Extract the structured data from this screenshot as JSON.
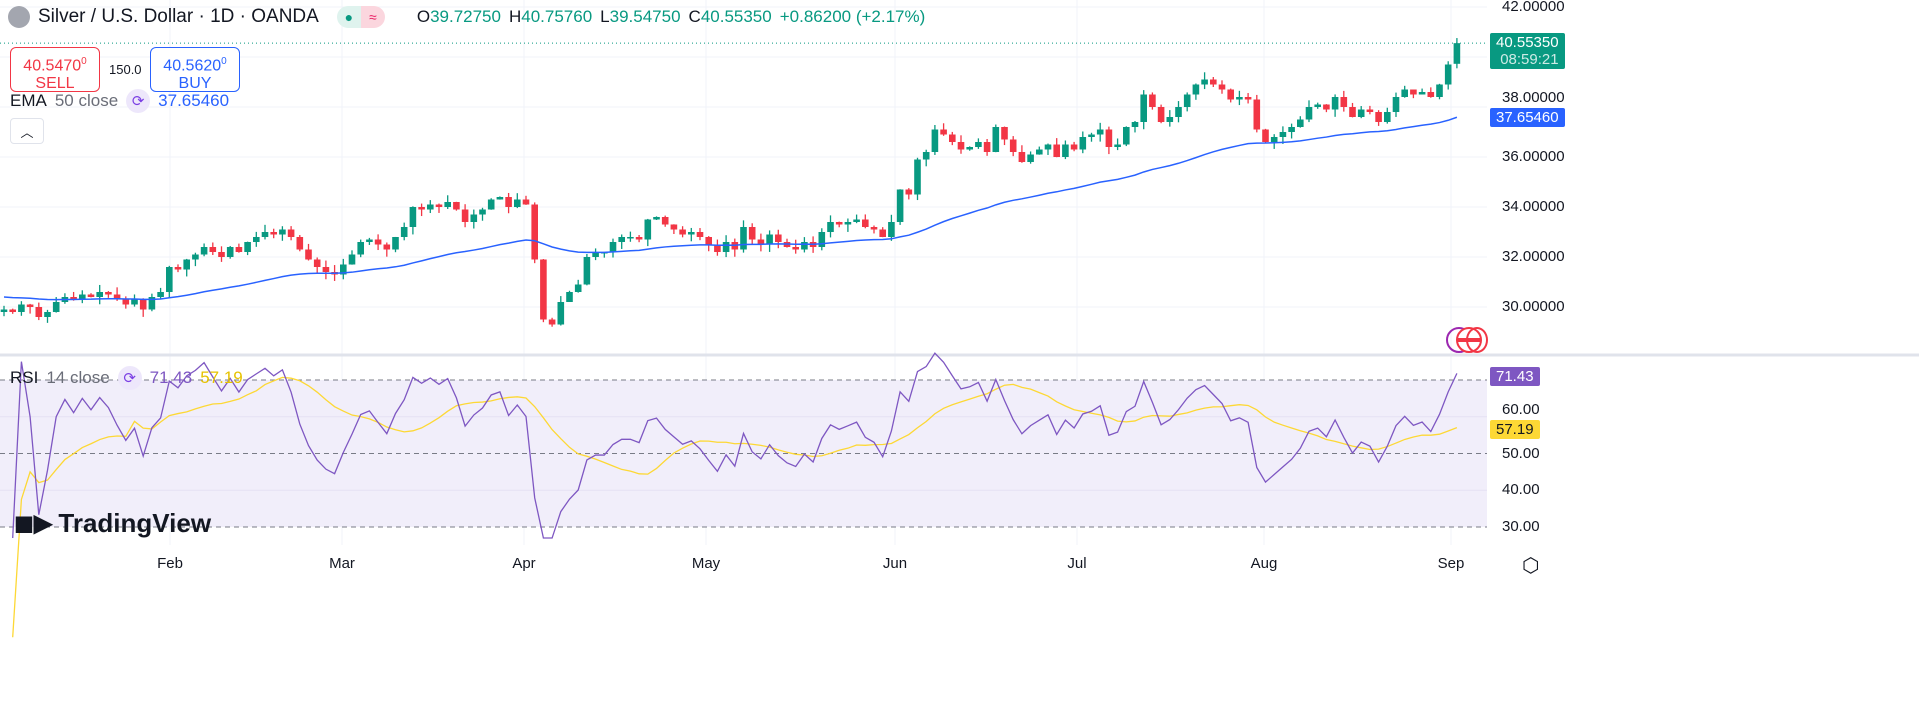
{
  "header": {
    "symbol": "Silver / U.S. Dollar · 1D · OANDA",
    "market_status_icon": "green-dot",
    "session_icon": "approx-wave",
    "ohlc": [
      {
        "k": "O",
        "v": "39.72750"
      },
      {
        "k": "H",
        "v": "40.75760"
      },
      {
        "k": "L",
        "v": "39.54750"
      },
      {
        "k": "C",
        "v": "40.55350"
      }
    ],
    "change": "+0.86200 (+2.17%)"
  },
  "trade": {
    "sell_price": "40.5470",
    "sell_sup": "0",
    "sell_label": "SELL",
    "spread": "150.0",
    "buy_price": "40.5620",
    "buy_sup": "0",
    "buy_label": "BUY"
  },
  "ema": {
    "name": "EMA",
    "params": "50 close",
    "value": "37.65460",
    "color": "#2962ff"
  },
  "rsi": {
    "name": "RSI",
    "params": "14 close",
    "value": "71.43",
    "ma_value": "57.19",
    "color": "#7e57c2",
    "ma_color": "#fdd835",
    "levels": [
      70,
      50,
      30
    ]
  },
  "price_axis": [
    "42.00000",
    "38.00000",
    "36.00000",
    "34.00000",
    "32.00000",
    "30.00000"
  ],
  "rsi_axis": [
    "60.00",
    "50.00",
    "40.00",
    "30.00"
  ],
  "last_price": {
    "value": "40.55350",
    "countdown": "08:59:21"
  },
  "time_axis": [
    "Feb",
    "Mar",
    "Apr",
    "May",
    "Jun",
    "Jul",
    "Aug",
    "Sep"
  ],
  "brand": "TradingView",
  "colors": {
    "up": "#089981",
    "down": "#f23645"
  },
  "chart_data": {
    "type": "candlestick",
    "price_range": [
      28,
      42
    ],
    "rsi_range": [
      25,
      80
    ],
    "last_candle": {
      "o": 39.7275,
      "h": 40.7576,
      "l": 39.5475,
      "c": 40.5535
    },
    "closes": [
      29.9,
      29.8,
      30.1,
      30.0,
      29.6,
      29.8,
      30.2,
      30.4,
      30.3,
      30.5,
      30.4,
      30.6,
      30.5,
      30.3,
      30.1,
      30.3,
      29.9,
      30.4,
      30.6,
      31.6,
      31.5,
      31.9,
      32.1,
      32.4,
      32.2,
      32.0,
      32.4,
      32.2,
      32.6,
      32.8,
      33.0,
      32.9,
      33.1,
      32.8,
      32.3,
      31.9,
      31.6,
      31.4,
      31.3,
      31.7,
      32.1,
      32.6,
      32.7,
      32.5,
      32.3,
      32.8,
      33.2,
      34.0,
      33.9,
      34.1,
      34.0,
      34.2,
      33.9,
      33.4,
      33.7,
      33.9,
      34.3,
      34.4,
      34.0,
      34.3,
      34.1,
      31.9,
      29.5,
      29.3,
      30.2,
      30.6,
      30.9,
      32.0,
      32.2,
      32.2,
      32.6,
      32.8,
      32.8,
      32.7,
      33.5,
      33.6,
      33.3,
      33.1,
      32.9,
      33.0,
      32.8,
      32.5,
      32.2,
      32.6,
      32.3,
      33.2,
      32.7,
      32.5,
      32.9,
      32.6,
      32.4,
      32.3,
      32.6,
      32.4,
      33.0,
      33.4,
      33.3,
      33.4,
      33.5,
      33.2,
      33.1,
      32.8,
      33.4,
      34.7,
      34.5,
      35.9,
      36.2,
      37.1,
      36.9,
      36.6,
      36.3,
      36.4,
      36.6,
      36.2,
      37.2,
      36.7,
      36.2,
      35.8,
      36.1,
      36.3,
      36.5,
      36.0,
      36.5,
      36.3,
      36.8,
      36.9,
      37.1,
      36.4,
      36.5,
      37.2,
      37.4,
      38.5,
      38.0,
      37.4,
      37.6,
      38.0,
      38.5,
      38.9,
      39.1,
      38.9,
      38.7,
      38.3,
      38.4,
      38.3,
      37.1,
      36.6,
      36.8,
      37.0,
      37.2,
      37.5,
      38.0,
      38.1,
      37.9,
      38.4,
      38.0,
      37.6,
      37.9,
      37.8,
      37.4,
      37.8,
      38.4,
      38.7,
      38.5,
      38.6,
      38.4,
      38.9,
      39.7,
      40.5535
    ]
  }
}
